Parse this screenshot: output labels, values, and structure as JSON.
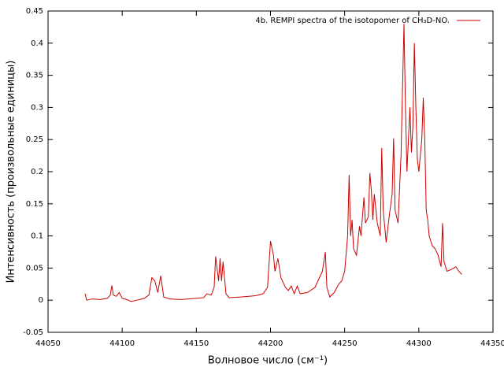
{
  "chart_data": {
    "type": "line",
    "xlabel": "Волновое число (см⁻¹)",
    "ylabel": "Интенсивность (произвольные единицы)",
    "xlim": [
      44050,
      44350
    ],
    "xticks": [
      44050,
      44100,
      44150,
      44200,
      44250,
      44300,
      44350
    ],
    "ylim": [
      -0.05,
      0.45
    ],
    "yticks": [
      -0.05,
      0,
      0.05,
      0.1,
      0.15,
      0.2,
      0.25,
      0.3,
      0.35,
      0.4,
      0.45
    ],
    "legend": "top-right",
    "x": [
      44075,
      44076,
      44080,
      44085,
      44090,
      44092,
      44093,
      44094,
      44096,
      44098,
      44100,
      44103,
      44106,
      44110,
      44115,
      44118,
      44120,
      44122,
      44124,
      44126,
      44128,
      44132,
      44140,
      44150,
      44155,
      44157,
      44160,
      44162,
      44163,
      44165,
      44166,
      44167,
      44168,
      44170,
      44172,
      44180,
      44190,
      44195,
      44198,
      44200,
      44202,
      44203,
      44205,
      44207,
      44210,
      44212,
      44214,
      44216,
      44218,
      44220,
      44225,
      44230,
      44235,
      44237,
      44238,
      44240,
      44243,
      44246,
      44248,
      44250,
      44252,
      44253,
      44254,
      44255,
      44256,
      44258,
      44260,
      44261,
      44263,
      44264,
      44266,
      44267,
      44268,
      44269,
      44270,
      44272,
      44274,
      44275,
      44276,
      44278,
      44280,
      44282,
      44283,
      44284,
      44286,
      44288,
      44290,
      44291,
      44292,
      44293,
      44294,
      44295,
      44296,
      44297,
      44298,
      44299,
      44300,
      44302,
      44303,
      44304,
      44305,
      44306,
      44307,
      44309,
      44311,
      44313,
      44315,
      44316,
      44317,
      44319,
      44322,
      44325,
      44327,
      44329
    ],
    "series": [
      {
        "name": "4b. REMPI spectra of the isotopomer of CH₃D-NO.",
        "color": "#cc0000",
        "values": [
          0.01,
          0.0,
          0.002,
          0.001,
          0.003,
          0.008,
          0.023,
          0.008,
          0.006,
          0.012,
          0.003,
          0.001,
          -0.002,
          0.0,
          0.003,
          0.008,
          0.035,
          0.03,
          0.012,
          0.038,
          0.005,
          0.002,
          0.001,
          0.003,
          0.004,
          0.01,
          0.008,
          0.02,
          0.068,
          0.03,
          0.065,
          0.03,
          0.06,
          0.01,
          0.004,
          0.005,
          0.007,
          0.01,
          0.02,
          0.092,
          0.07,
          0.045,
          0.065,
          0.035,
          0.02,
          0.015,
          0.022,
          0.01,
          0.022,
          0.01,
          0.012,
          0.02,
          0.045,
          0.075,
          0.02,
          0.005,
          0.012,
          0.025,
          0.03,
          0.045,
          0.1,
          0.195,
          0.1,
          0.125,
          0.08,
          0.07,
          0.115,
          0.1,
          0.16,
          0.12,
          0.13,
          0.198,
          0.17,
          0.125,
          0.165,
          0.12,
          0.1,
          0.237,
          0.14,
          0.09,
          0.13,
          0.165,
          0.252,
          0.14,
          0.12,
          0.225,
          0.43,
          0.3,
          0.2,
          0.25,
          0.3,
          0.23,
          0.27,
          0.4,
          0.3,
          0.22,
          0.2,
          0.25,
          0.315,
          0.25,
          0.14,
          0.125,
          0.1,
          0.085,
          0.08,
          0.07,
          0.052,
          0.12,
          0.06,
          0.045,
          0.048,
          0.052,
          0.045,
          0.04
        ]
      }
    ]
  }
}
